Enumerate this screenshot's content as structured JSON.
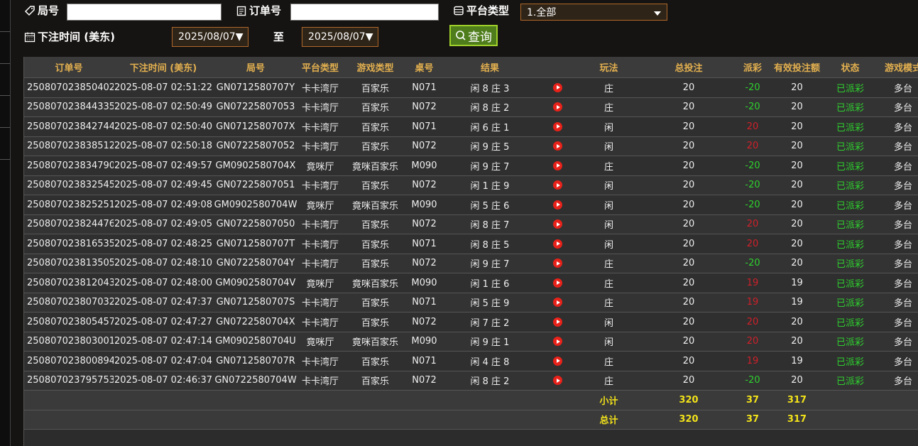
{
  "filters": {
    "round_label": "局号",
    "order_label": "订单号",
    "platform_label": "平台类型",
    "platform_value": "1.全部",
    "time_label": "下注时间 (美东)",
    "date_from": "2025/08/07▼",
    "to_label": "至",
    "date_to": "2025/08/07▼",
    "query_button": "查询"
  },
  "table": {
    "headers": [
      "订单号",
      "下注时间 (美东)",
      "局号",
      "平台类型",
      "游戏类型",
      "桌号",
      "结果",
      "玩法",
      "总投注",
      "派彩",
      "有效投注额",
      "状态",
      "游戏模式"
    ],
    "rows": [
      [
        "250807023850402",
        "2025-08-07 02:51:22",
        "GN0712580707Y",
        "卡卡湾厅",
        "百家乐",
        "N071",
        "闲 8 庄 3",
        "庄",
        20,
        -20,
        20,
        "已派彩",
        "多台"
      ],
      [
        "250807023844335",
        "2025-08-07 02:50:49",
        "GN07225807053",
        "卡卡湾厅",
        "百家乐",
        "N072",
        "闲 8 庄 2",
        "庄",
        20,
        -20,
        20,
        "已派彩",
        "多台"
      ],
      [
        "250807023842744",
        "2025-08-07 02:50:40",
        "GN0712580707X",
        "卡卡湾厅",
        "百家乐",
        "N071",
        "闲 6 庄 1",
        "闲",
        20,
        20,
        20,
        "已派彩",
        "多台"
      ],
      [
        "250807023838512",
        "2025-08-07 02:50:18",
        "GN07225807052",
        "卡卡湾厅",
        "百家乐",
        "N072",
        "闲 9 庄 5",
        "闲",
        20,
        20,
        20,
        "已派彩",
        "多台"
      ],
      [
        "250807023834790",
        "2025-08-07 02:49:57",
        "GM0902580704X",
        "竟咪厅",
        "竟咪百家乐",
        "M090",
        "闲 9 庄 7",
        "庄",
        20,
        -20,
        20,
        "已派彩",
        "多台"
      ],
      [
        "250807023832545",
        "2025-08-07 02:49:45",
        "GN07225807051",
        "卡卡湾厅",
        "百家乐",
        "N072",
        "闲 1 庄 9",
        "闲",
        20,
        -20,
        20,
        "已派彩",
        "多台"
      ],
      [
        "250807023825251",
        "2025-08-07 02:49:08",
        "GM0902580704W",
        "竟咪厅",
        "竟咪百家乐",
        "M090",
        "闲 5 庄 6",
        "闲",
        20,
        -20,
        20,
        "已派彩",
        "多台"
      ],
      [
        "250807023824476",
        "2025-08-07 02:49:05",
        "GN07225807050",
        "卡卡湾厅",
        "百家乐",
        "N072",
        "闲 8 庄 7",
        "闲",
        20,
        20,
        20,
        "已派彩",
        "多台"
      ],
      [
        "250807023816535",
        "2025-08-07 02:48:25",
        "GN0712580707T",
        "卡卡湾厅",
        "百家乐",
        "N071",
        "闲 8 庄 5",
        "闲",
        20,
        20,
        20,
        "已派彩",
        "多台"
      ],
      [
        "250807023813505",
        "2025-08-07 02:48:10",
        "GN0722580704Y",
        "卡卡湾厅",
        "百家乐",
        "N072",
        "闲 9 庄 7",
        "庄",
        20,
        -20,
        20,
        "已派彩",
        "多台"
      ],
      [
        "250807023812043",
        "2025-08-07 02:48:00",
        "GM0902580704V",
        "竟咪厅",
        "竟咪百家乐",
        "M090",
        "闲 1 庄 6",
        "庄",
        20,
        19,
        19,
        "已派彩",
        "多台"
      ],
      [
        "250807023807032",
        "2025-08-07 02:47:37",
        "GN0712580707S",
        "卡卡湾厅",
        "百家乐",
        "N071",
        "闲 5 庄 9",
        "庄",
        20,
        19,
        19,
        "已派彩",
        "多台"
      ],
      [
        "250807023805457",
        "2025-08-07 02:47:27",
        "GN0722580704X",
        "卡卡湾厅",
        "百家乐",
        "N072",
        "闲 7 庄 2",
        "闲",
        20,
        20,
        20,
        "已派彩",
        "多台"
      ],
      [
        "250807023803001",
        "2025-08-07 02:47:14",
        "GM0902580704U",
        "竟咪厅",
        "竟咪百家乐",
        "M090",
        "闲 9 庄 1",
        "闲",
        20,
        20,
        20,
        "已派彩",
        "多台"
      ],
      [
        "250807023800894",
        "2025-08-07 02:47:04",
        "GN0712580707R",
        "卡卡湾厅",
        "百家乐",
        "N071",
        "闲 4 庄 8",
        "庄",
        20,
        19,
        19,
        "已派彩",
        "多台"
      ],
      [
        "250807023795753",
        "2025-08-07 02:46:37",
        "GN0722580704W",
        "卡卡湾厅",
        "百家乐",
        "N072",
        "闲 8 庄 2",
        "庄",
        20,
        -20,
        20,
        "已派彩",
        "多台"
      ]
    ],
    "subtotal": {
      "label": "小计",
      "total_bet": 320,
      "payout": 37,
      "valid_bet": 317
    },
    "total": {
      "label": "总计",
      "total_bet": 320,
      "payout": 37,
      "valid_bet": 317
    }
  }
}
